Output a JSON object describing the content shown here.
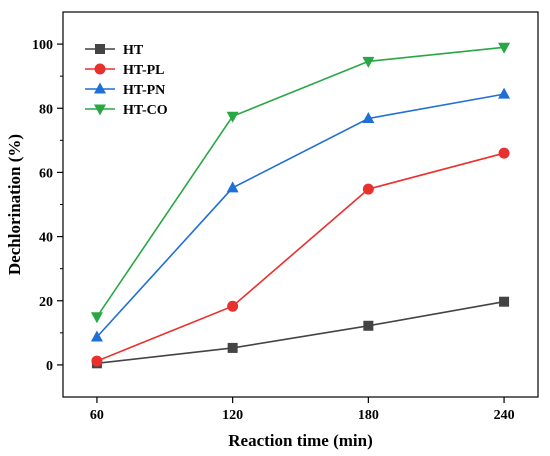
{
  "chart_data": {
    "type": "line",
    "xlabel": "Reaction time (min)",
    "ylabel": "Dechlorination (%)",
    "x": [
      60,
      120,
      180,
      240
    ],
    "xlim": [
      45,
      255
    ],
    "ylim": [
      -10,
      110
    ],
    "xticks": [
      60,
      120,
      180,
      240
    ],
    "yticks": [
      0,
      20,
      40,
      60,
      80,
      100
    ],
    "grid": false,
    "legend_position": "top-left",
    "series": [
      {
        "name": "HT",
        "color": "#444444",
        "marker": "square",
        "values": [
          0.5,
          5.3,
          12.2,
          19.7
        ]
      },
      {
        "name": "HT-PL",
        "color": "#e8312d",
        "marker": "circle",
        "values": [
          1.2,
          18.3,
          54.8,
          66.0
        ]
      },
      {
        "name": "HT-PN",
        "color": "#1f6fd6",
        "marker": "triangle-up",
        "values": [
          8.7,
          55.2,
          76.8,
          84.4
        ]
      },
      {
        "name": "HT-CO",
        "color": "#28a745",
        "marker": "triangle-down",
        "values": [
          15.0,
          77.5,
          94.6,
          99.0
        ]
      }
    ]
  }
}
